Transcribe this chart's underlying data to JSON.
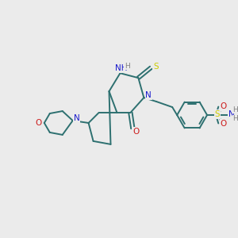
{
  "background_color": "#ebebeb",
  "bond_color": "#2d7070",
  "atom_colors": {
    "N": "#1a1acc",
    "O": "#cc1a1a",
    "S": "#cccc00",
    "H": "#808080",
    "C": "#2d7070"
  },
  "figsize": [
    3.0,
    3.0
  ],
  "dpi": 100,
  "bond_lw": 1.4,
  "font_size": 7.5
}
